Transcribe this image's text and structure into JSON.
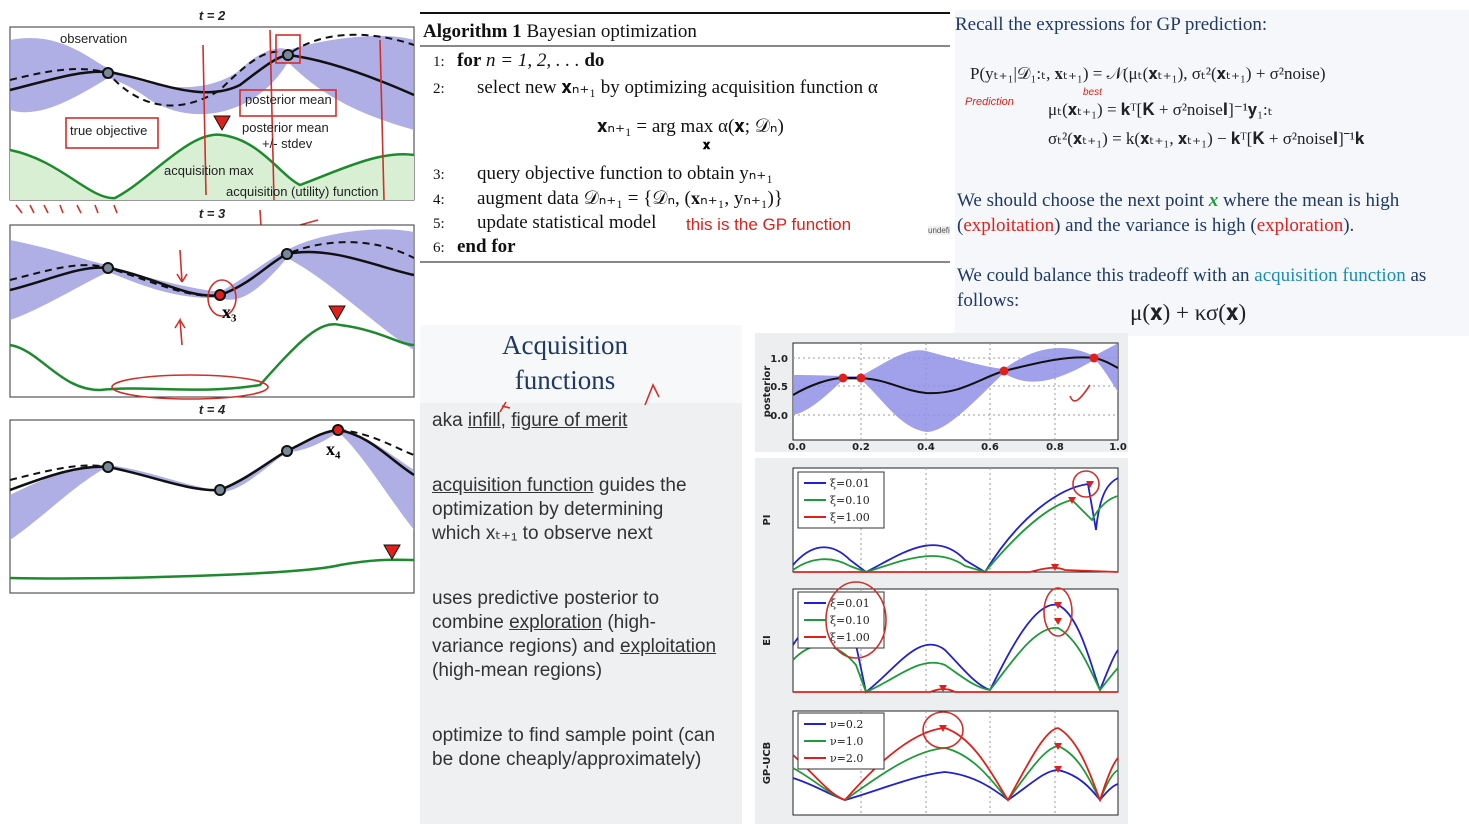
{
  "left_panels": [
    {
      "title": "t = 2",
      "labels": [
        "observation",
        "posterior mean",
        "true objective",
        "posterior mean",
        "+/- stdev",
        "acquisition max",
        "acquisition (utility) function"
      ]
    },
    {
      "title": "t = 3",
      "labels": [
        "x₃"
      ]
    },
    {
      "title": "t = 4",
      "labels": [
        "x₄"
      ]
    }
  ],
  "algorithm": {
    "title_bold": "Algorithm 1",
    "title": "Bayesian optimization",
    "steps": [
      {
        "num": "1:",
        "kw": "for",
        "text": "n = 1, 2, . . .",
        "kw2": "do"
      },
      {
        "num": "2:",
        "text": "select new 𝐱ₙ₊₁ by optimizing acquisition function α"
      },
      {
        "num": "3:",
        "text": "query objective function to obtain yₙ₊₁"
      },
      {
        "num": "4:",
        "text": "augment data 𝒟ₙ₊₁ = {𝒟ₙ, (𝐱ₙ₊₁, yₙ₊₁)}"
      },
      {
        "num": "5:",
        "text": "update statistical model"
      },
      {
        "num": "6:",
        "kw": "end for"
      }
    ],
    "equation": "𝐱ₙ₊₁ = arg max α(𝐱; 𝒟ₙ)",
    "equation_sub": "𝐱",
    "annotation": "this is the GP function",
    "tag": "undefi"
  },
  "gp_notes": {
    "heading": "Recall the expressions for GP prediction:",
    "equations": [
      "P(yₜ₊₁|𝒟₁:ₜ, 𝐱ₜ₊₁) = 𝒩(μₜ(𝐱ₜ₊₁), σₜ²(𝐱ₜ₊₁) + σ²noise)",
      "μₜ(𝐱ₜ₊₁) = 𝐤ᵀ[𝐊 + σ²noise𝐈]⁻¹𝐲₁:ₜ",
      "σₜ²(𝐱ₜ₊₁) = k(𝐱ₜ₊₁, 𝐱ₜ₊₁) − 𝐤ᵀ[𝐊 + σ²noise𝐈]⁻¹𝐤"
    ],
    "handwritten": [
      "Prediction",
      "best"
    ],
    "para1": [
      "We should choose the next point ",
      "x",
      " where the mean is high",
      "(",
      "exploitation",
      ") and the variance is high (",
      "exploration",
      ")."
    ],
    "para2": [
      "We could balance this tradeoff with an ",
      "acquisition function",
      " as",
      "follows:"
    ],
    "formula": "μ(𝐱) + κσ(𝐱)"
  },
  "slide": {
    "title": [
      "Acquisition",
      "functions"
    ],
    "bullets": [
      [
        "aka ",
        "infill",
        ", ",
        "figure of merit"
      ],
      [
        "acquisition function",
        " guides the",
        "optimization by determining",
        "which xₜ₊₁ to observe next"
      ],
      [
        "uses predictive posterior to",
        "combine ",
        "exploration",
        " (high-",
        "variance regions) and ",
        "exploitation",
        "(high-mean regions)"
      ],
      [
        "optimize to find sample point (can",
        "be done cheaply/approximately)"
      ]
    ]
  },
  "plots": {
    "posterior": {
      "ylabel": "posterior",
      "yticks": [
        "0.0",
        "0.5",
        "1.0"
      ],
      "xticks": [
        "0.0",
        "0.2",
        "0.4",
        "0.6",
        "0.8",
        "1.0"
      ]
    },
    "pi": {
      "ylabel": "PI",
      "legend": [
        "ξ=0.01",
        "ξ=0.10",
        "ξ=1.00"
      ]
    },
    "ei": {
      "ylabel": "EI",
      "legend": [
        "ξ=0.01",
        "ξ=0.10",
        "ξ=1.00"
      ]
    },
    "ucb": {
      "ylabel": "GP-UCB",
      "legend": [
        "ν=0.2",
        "ν=1.0",
        "ν=2.0"
      ]
    }
  }
}
